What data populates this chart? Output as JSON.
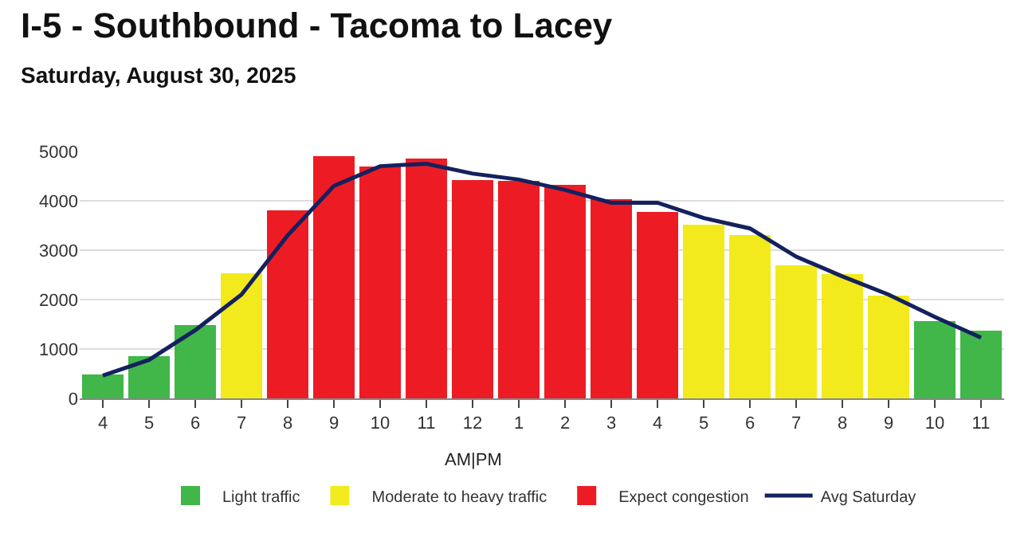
{
  "chart_data": {
    "type": "bar",
    "title": "I-5 - Southbound - Tacoma to Lacey",
    "subtitle": "Saturday, August 30, 2025",
    "categories": [
      "4",
      "5",
      "6",
      "7",
      "8",
      "9",
      "10",
      "11",
      "12",
      "1",
      "2",
      "3",
      "4",
      "5",
      "6",
      "7",
      "8",
      "9",
      "10",
      "11"
    ],
    "series": [
      {
        "name": "Light traffic",
        "color": "#41b649",
        "values": [
          480,
          850,
          1480,
          null,
          null,
          null,
          null,
          null,
          null,
          null,
          null,
          null,
          null,
          null,
          null,
          null,
          null,
          null,
          1560,
          1370
        ]
      },
      {
        "name": "Moderate to heavy traffic",
        "color": "#f2ea1c",
        "values": [
          null,
          null,
          null,
          2540,
          null,
          null,
          null,
          null,
          null,
          null,
          null,
          null,
          null,
          3520,
          3300,
          2700,
          2510,
          2080,
          null,
          null
        ]
      },
      {
        "name": "Expect congestion",
        "color": "#ed1c24",
        "values": [
          null,
          null,
          null,
          null,
          3800,
          4900,
          4700,
          4850,
          4420,
          4400,
          4330,
          4030,
          3780,
          null,
          null,
          null,
          null,
          null,
          null,
          null
        ]
      },
      {
        "name": "Avg Saturday",
        "type": "line",
        "color": "#14215e",
        "values": [
          460,
          780,
          1380,
          2100,
          3300,
          4300,
          4700,
          4750,
          4550,
          4430,
          4220,
          3960,
          3960,
          3650,
          3440,
          2870,
          2470,
          2100,
          1650,
          1230
        ]
      }
    ],
    "annotations": [
      "AM|PM"
    ],
    "ylim": [
      0,
      5000
    ],
    "yticks": [
      0,
      1000,
      2000,
      3000,
      4000,
      5000
    ],
    "grid": "y",
    "legend": "bottom",
    "stacked": true
  }
}
